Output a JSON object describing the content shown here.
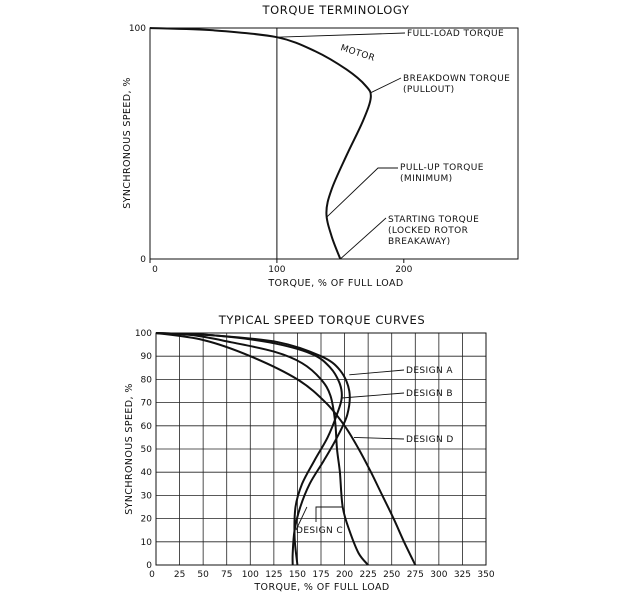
{
  "chart_data": [
    {
      "type": "line",
      "title": "TORQUE TERMINOLOGY",
      "xlabel": "TORQUE, % OF FULL LOAD",
      "ylabel": "SYNCHRONOUS SPEED, %",
      "xlim": [
        0,
        290
      ],
      "ylim": [
        0,
        100
      ],
      "x_ticks": [
        "0",
        "100",
        "200"
      ],
      "y_ticks": [
        "0",
        "100"
      ],
      "grid": false,
      "reference_line_x": 100,
      "series": [
        {
          "name": "MOTOR",
          "points": [
            [
              0,
              100
            ],
            [
              50,
              99
            ],
            [
              100,
              96
            ],
            [
              130,
              90
            ],
            [
              155,
              82
            ],
            [
              170,
              75
            ],
            [
              174,
              70
            ],
            [
              168,
              60
            ],
            [
              155,
              45
            ],
            [
              143,
              30
            ],
            [
              139,
              20
            ],
            [
              143,
              10
            ],
            [
              150,
              0
            ]
          ]
        }
      ],
      "annotations": [
        {
          "lines": [
            "FULL-LOAD TORQUE"
          ],
          "target": [
            100,
            96
          ]
        },
        {
          "lines": [
            "BREAKDOWN TORQUE",
            "(PULLOUT)"
          ],
          "target": [
            174,
            72
          ]
        },
        {
          "lines": [
            "PULL-UP TORQUE",
            "(MINIMUM)"
          ],
          "target": [
            139,
            18
          ]
        },
        {
          "lines": [
            "STARTING TORQUE",
            "(LOCKED ROTOR",
            "BREAKAWAY)"
          ],
          "target": [
            150,
            0
          ]
        }
      ]
    },
    {
      "type": "line",
      "title": "TYPICAL SPEED TORQUE CURVES",
      "xlabel": "TORQUE, % OF FULL LOAD",
      "ylabel": "SYNCHRONOUS SPEED, %",
      "xlim": [
        0,
        350
      ],
      "ylim": [
        0,
        100
      ],
      "x_ticks": [
        "0",
        "25",
        "50",
        "75",
        "100",
        "125",
        "150",
        "175",
        "200",
        "225",
        "250",
        "275",
        "300",
        "325",
        "350"
      ],
      "y_ticks": [
        "0",
        "10",
        "20",
        "30",
        "40",
        "50",
        "60",
        "70",
        "80",
        "90",
        "100"
      ],
      "grid": true,
      "series": [
        {
          "name": "DESIGN A",
          "points": [
            [
              0,
              100
            ],
            [
              60,
              99
            ],
            [
              130,
              96
            ],
            [
              175,
              90
            ],
            [
              195,
              84
            ],
            [
              205,
              75
            ],
            [
              203,
              65
            ],
            [
              192,
              55
            ],
            [
              178,
              45
            ],
            [
              163,
              35
            ],
            [
              153,
              25
            ],
            [
              147,
              15
            ],
            [
              145,
              5
            ],
            [
              145,
              0
            ]
          ]
        },
        {
          "name": "DESIGN B",
          "points": [
            [
              0,
              100
            ],
            [
              60,
              99
            ],
            [
              120,
              96
            ],
            [
              165,
              91
            ],
            [
              185,
              85
            ],
            [
              195,
              78
            ],
            [
              197,
              72
            ],
            [
              192,
              65
            ],
            [
              182,
              55
            ],
            [
              168,
              45
            ],
            [
              155,
              35
            ],
            [
              148,
              25
            ],
            [
              147,
              12
            ],
            [
              150,
              0
            ]
          ]
        },
        {
          "name": "DESIGN C",
          "points": [
            [
              0,
              100
            ],
            [
              40,
              99
            ],
            [
              80,
              96
            ],
            [
              125,
              92
            ],
            [
              155,
              87
            ],
            [
              175,
              80
            ],
            [
              185,
              73
            ],
            [
              190,
              62
            ],
            [
              192,
              50
            ],
            [
              195,
              40
            ],
            [
              198,
              25
            ],
            [
              205,
              15
            ],
            [
              215,
              5
            ],
            [
              225,
              0
            ]
          ]
        },
        {
          "name": "DESIGN D",
          "points": [
            [
              0,
              100
            ],
            [
              50,
              97
            ],
            [
              100,
              90
            ],
            [
              150,
              80
            ],
            [
              180,
              70
            ],
            [
              200,
              60
            ],
            [
              215,
              50
            ],
            [
              228,
              40
            ],
            [
              240,
              30
            ],
            [
              252,
              20
            ],
            [
              263,
              10
            ],
            [
              275,
              0
            ]
          ]
        }
      ],
      "annotations": [
        {
          "lines": [
            "DESIGN A"
          ],
          "target": [
            205,
            82
          ]
        },
        {
          "lines": [
            "DESIGN B"
          ],
          "target": [
            197,
            72
          ]
        },
        {
          "lines": [
            "DESIGN D"
          ],
          "target": [
            210,
            55
          ]
        },
        {
          "lines": [
            "DESIGN C"
          ],
          "target": [
            160,
            25
          ]
        }
      ]
    }
  ]
}
